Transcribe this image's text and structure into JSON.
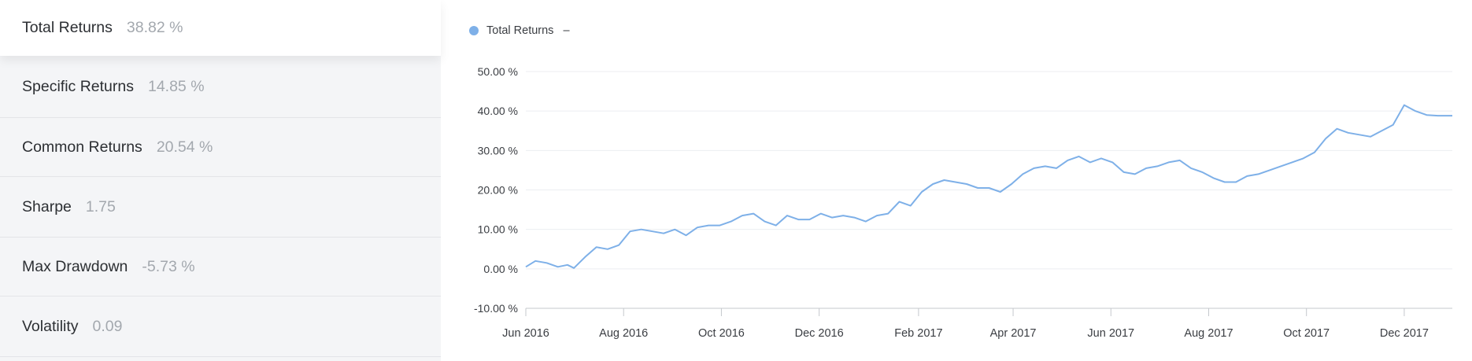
{
  "metrics": [
    {
      "label": "Total Returns",
      "value": "38.82 %"
    },
    {
      "label": "Specific Returns",
      "value": "14.85 %"
    },
    {
      "label": "Common Returns",
      "value": "20.54 %"
    },
    {
      "label": "Sharpe",
      "value": "1.75"
    },
    {
      "label": "Max Drawdown",
      "value": "-5.73 %"
    },
    {
      "label": "Volatility",
      "value": "0.09"
    }
  ],
  "legend": {
    "name": "Total Returns",
    "extra": "–",
    "color": "#7eb0e8"
  },
  "chart_data": {
    "type": "line",
    "ylim": [
      -10,
      50
    ],
    "yticks": [
      "50.00 %",
      "40.00 %",
      "30.00 %",
      "20.00 %",
      "10.00 %",
      "0.00 %",
      "-10.00 %"
    ],
    "ytick_values": [
      50,
      40,
      30,
      20,
      10,
      0,
      -10
    ],
    "xticks": [
      "Jun 2016",
      "Aug 2016",
      "Oct 2016",
      "Dec 2016",
      "Feb 2017",
      "Apr 2017",
      "Jun 2017",
      "Aug 2017",
      "Oct 2017",
      "Dec 2017"
    ],
    "xtick_dates": [
      "2016-06-01",
      "2016-08-01",
      "2016-10-01",
      "2016-12-01",
      "2017-02-01",
      "2017-04-01",
      "2017-06-01",
      "2017-08-01",
      "2017-10-01",
      "2017-12-01"
    ],
    "xlim": [
      "2016-06-01",
      "2017-12-31"
    ],
    "grid": true,
    "series": [
      {
        "name": "Total Returns",
        "color": "#7eb0e8",
        "x": [
          "2016-06-01",
          "2016-06-07",
          "2016-06-14",
          "2016-06-21",
          "2016-06-27",
          "2016-07-01",
          "2016-07-08",
          "2016-07-15",
          "2016-07-22",
          "2016-07-29",
          "2016-08-05",
          "2016-08-12",
          "2016-08-19",
          "2016-08-26",
          "2016-09-02",
          "2016-09-09",
          "2016-09-16",
          "2016-09-23",
          "2016-09-30",
          "2016-10-07",
          "2016-10-14",
          "2016-10-21",
          "2016-10-28",
          "2016-11-04",
          "2016-11-11",
          "2016-11-18",
          "2016-11-25",
          "2016-12-02",
          "2016-12-09",
          "2016-12-16",
          "2016-12-23",
          "2016-12-30",
          "2017-01-06",
          "2017-01-13",
          "2017-01-20",
          "2017-01-27",
          "2017-02-03",
          "2017-02-10",
          "2017-02-17",
          "2017-02-24",
          "2017-03-03",
          "2017-03-10",
          "2017-03-17",
          "2017-03-24",
          "2017-03-31",
          "2017-04-07",
          "2017-04-14",
          "2017-04-21",
          "2017-04-28",
          "2017-05-05",
          "2017-05-12",
          "2017-05-19",
          "2017-05-26",
          "2017-06-02",
          "2017-06-09",
          "2017-06-16",
          "2017-06-23",
          "2017-06-30",
          "2017-07-07",
          "2017-07-14",
          "2017-07-21",
          "2017-07-28",
          "2017-08-04",
          "2017-08-11",
          "2017-08-18",
          "2017-08-25",
          "2017-09-01",
          "2017-09-08",
          "2017-09-15",
          "2017-09-22",
          "2017-09-29",
          "2017-10-06",
          "2017-10-13",
          "2017-10-20",
          "2017-10-27",
          "2017-11-03",
          "2017-11-10",
          "2017-11-17",
          "2017-11-24",
          "2017-12-01",
          "2017-12-08",
          "2017-12-15",
          "2017-12-22",
          "2017-12-29",
          "2017-12-31"
        ],
        "y": [
          0.5,
          2.0,
          1.5,
          0.5,
          1.0,
          0.2,
          3.0,
          5.5,
          5.0,
          6.0,
          9.5,
          10.0,
          9.5,
          9.0,
          10.0,
          8.5,
          10.5,
          11.0,
          11.0,
          12.0,
          13.5,
          14.0,
          12.0,
          11.0,
          13.5,
          12.5,
          12.5,
          14.0,
          13.0,
          13.5,
          13.0,
          12.0,
          13.5,
          14.0,
          17.0,
          16.0,
          19.5,
          21.5,
          22.5,
          22.0,
          21.5,
          20.5,
          20.5,
          19.5,
          21.5,
          24.0,
          25.5,
          26.0,
          25.5,
          27.5,
          28.5,
          27.0,
          28.0,
          27.0,
          24.5,
          24.0,
          25.5,
          26.0,
          27.0,
          27.5,
          25.5,
          24.5,
          23.0,
          22.0,
          22.0,
          23.5,
          24.0,
          25.0,
          26.0,
          27.0,
          28.0,
          29.5,
          33.0,
          35.5,
          34.5,
          34.0,
          33.5,
          35.0,
          36.5,
          41.5,
          40.0,
          39.0,
          38.82,
          38.82,
          38.82
        ]
      }
    ]
  }
}
